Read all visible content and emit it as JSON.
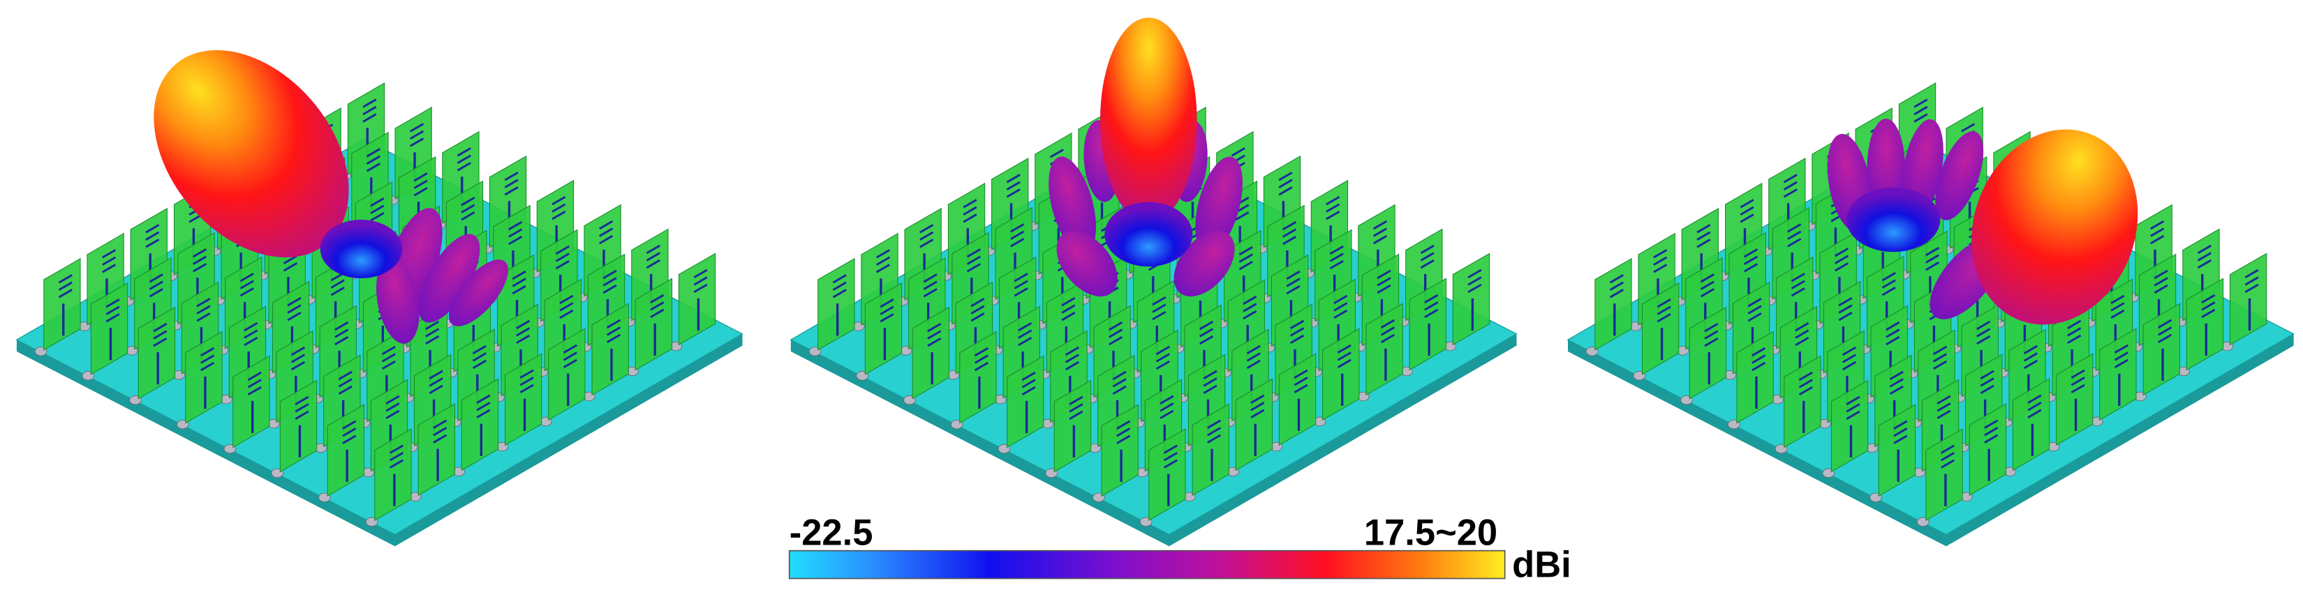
{
  "colorbar": {
    "min_label": "-22.5",
    "max_label": "17.5~20",
    "unit": "dBi"
  }
}
